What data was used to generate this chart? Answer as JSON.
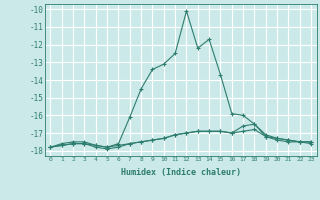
{
  "title": "",
  "xlabel": "Humidex (Indice chaleur)",
  "bg_color": "#cce9e9",
  "grid_color": "#ffffff",
  "line_color": "#2d7d6e",
  "xlim": [
    -0.5,
    23.5
  ],
  "ylim": [
    -18.3,
    -9.7
  ],
  "yticks": [
    -18,
    -17,
    -16,
    -15,
    -14,
    -13,
    -12,
    -11,
    -10
  ],
  "xticks": [
    0,
    1,
    2,
    3,
    4,
    5,
    6,
    7,
    8,
    9,
    10,
    11,
    12,
    13,
    14,
    15,
    16,
    17,
    18,
    19,
    20,
    21,
    22,
    23
  ],
  "series": [
    {
      "x": [
        0,
        1,
        2,
        3,
        4,
        5,
        6,
        7,
        8,
        9,
        10,
        11,
        12,
        13,
        14,
        15,
        16,
        17,
        18,
        19,
        20,
        21,
        22,
        23
      ],
      "y": [
        -17.8,
        -17.6,
        -17.5,
        -17.5,
        -17.7,
        -17.8,
        -17.6,
        -16.1,
        -14.5,
        -13.4,
        -13.1,
        -12.5,
        -10.1,
        -12.2,
        -11.7,
        -13.7,
        -15.9,
        -16.0,
        -16.5,
        -17.2,
        -17.4,
        -17.5,
        -17.5,
        -17.6
      ]
    },
    {
      "x": [
        0,
        1,
        2,
        3,
        4,
        5,
        6,
        7,
        8,
        9,
        10,
        11,
        12,
        13,
        14,
        15,
        16,
        17,
        18,
        19,
        20,
        21,
        22,
        23
      ],
      "y": [
        -17.8,
        -17.7,
        -17.6,
        -17.6,
        -17.7,
        -17.8,
        -17.7,
        -17.6,
        -17.5,
        -17.4,
        -17.3,
        -17.1,
        -17.0,
        -16.9,
        -16.9,
        -16.9,
        -17.0,
        -16.6,
        -16.5,
        -17.1,
        -17.3,
        -17.4,
        -17.5,
        -17.5
      ]
    },
    {
      "x": [
        0,
        1,
        2,
        3,
        4,
        5,
        6,
        7,
        8,
        9,
        10,
        11,
        12,
        13,
        14,
        15,
        16,
        17,
        18,
        19,
        20,
        21,
        22,
        23
      ],
      "y": [
        -17.8,
        -17.7,
        -17.6,
        -17.6,
        -17.8,
        -17.9,
        -17.8,
        -17.6,
        -17.5,
        -17.4,
        -17.3,
        -17.1,
        -17.0,
        -16.9,
        -16.9,
        -16.9,
        -17.0,
        -16.9,
        -16.8,
        -17.2,
        -17.3,
        -17.4,
        -17.5,
        -17.5
      ]
    }
  ]
}
